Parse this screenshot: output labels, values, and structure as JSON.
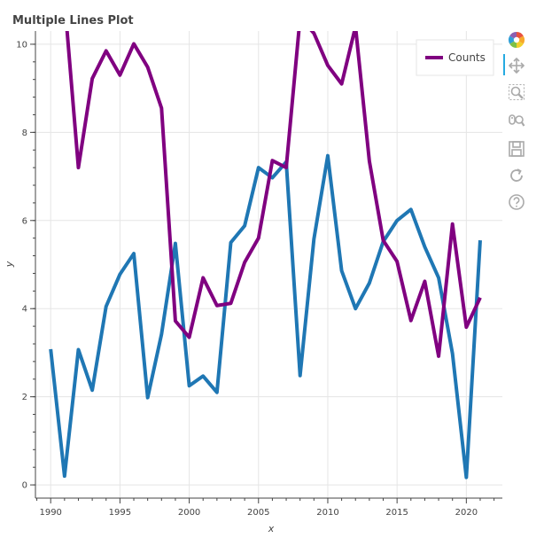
{
  "chart_data": {
    "type": "line",
    "title": "Multiple Lines Plot",
    "xlabel": "x",
    "ylabel": "y",
    "xlim": [
      1988.9,
      1992.6
    ],
    "ylim": [
      -0.3,
      10.3
    ],
    "x_ticks": [
      1990,
      1995,
      2000,
      2005,
      2010,
      2015,
      2020
    ],
    "y_ticks": [
      0,
      2,
      4,
      6,
      8,
      10
    ],
    "grid": true,
    "legend": {
      "position": "top-right",
      "entries": [
        "Counts"
      ]
    },
    "x": [
      1990,
      1991,
      1992,
      1993,
      1994,
      1995,
      1996,
      1997,
      1998,
      1999,
      2000,
      2001,
      2002,
      2003,
      2004,
      2005,
      2006,
      2007,
      2008,
      2009,
      2010,
      2011,
      2012,
      2013,
      2014,
      2015,
      2016,
      2017,
      2018,
      2019,
      2020,
      2021
    ],
    "series": [
      {
        "color": "#1f77b4",
        "values": [
          3.08,
          0.2,
          3.07,
          2.15,
          4.05,
          4.78,
          5.25,
          1.98,
          3.42,
          5.48,
          2.25,
          2.47,
          2.1,
          5.5,
          5.88,
          7.2,
          6.97,
          7.33,
          2.48,
          5.58,
          7.47,
          4.86,
          4.0,
          4.58,
          5.52,
          6.0,
          6.25,
          5.4,
          4.7,
          2.98,
          0.17,
          5.55
        ]
      },
      {
        "name": "Counts",
        "color": "#800080",
        "values": [
          null,
          11.0,
          7.2,
          9.22,
          9.85,
          9.3,
          10.01,
          9.48,
          8.55,
          3.72,
          3.35,
          4.7,
          4.07,
          4.12,
          5.05,
          5.6,
          7.36,
          7.2,
          10.6,
          10.25,
          9.52,
          9.1,
          10.4,
          7.35,
          5.55,
          5.07,
          3.73,
          4.62,
          2.92,
          5.92,
          3.58,
          4.25
        ]
      }
    ]
  },
  "toolbar": {
    "tools": [
      "bokeh-logo-icon",
      "pan-icon",
      "box-zoom-icon",
      "wheel-zoom-icon",
      "save-icon",
      "reset-icon",
      "help-icon"
    ]
  }
}
